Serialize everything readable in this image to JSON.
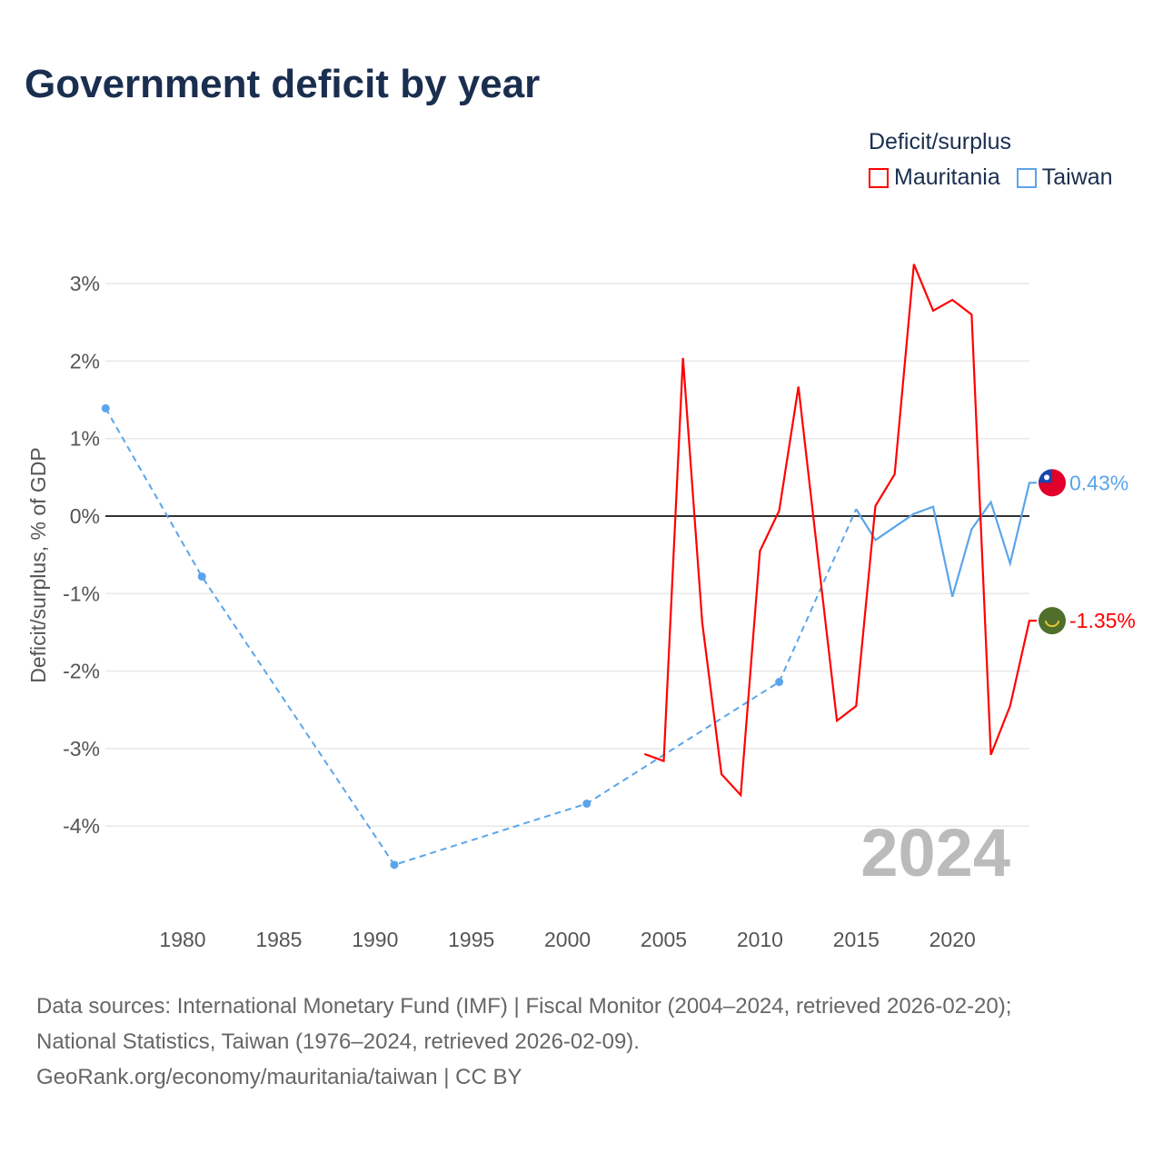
{
  "title": "Government deficit by year",
  "legend": {
    "title": "Deficit/surplus",
    "items": [
      {
        "label": "Mauritania",
        "color": "#ff0000"
      },
      {
        "label": "Taiwan",
        "color": "#5aa5ea"
      }
    ]
  },
  "year_watermark": "2024",
  "sources": [
    "Data sources: International Monetary Fund (IMF) | Fiscal Monitor (2004–2024, retrieved 2026-02-20);",
    "National Statistics, Taiwan (1976–2024, retrieved 2026-02-09).",
    "GeoRank.org/economy/mauritania/taiwan | CC BY"
  ],
  "chart_data": {
    "type": "line",
    "title": "Government deficit by year",
    "xlabel": "",
    "ylabel": "Deficit/surplus, % of GDP",
    "xlim": [
      1976,
      2024
    ],
    "ylim": [
      -5,
      3.3
    ],
    "xticks": [
      "1980",
      "1985",
      "1990",
      "1995",
      "2000",
      "2005",
      "2010",
      "2015",
      "2020"
    ],
    "yticks": [
      "3%",
      "2%",
      "1%",
      "0%",
      "-1%",
      "-2%",
      "-3%",
      "-4%"
    ],
    "ytick_values": [
      3,
      2,
      1,
      0,
      -1,
      -2,
      -3,
      -4
    ],
    "series": [
      {
        "name": "Mauritania",
        "color": "#ff0000",
        "end_label": "-1.35%",
        "x": [
          2004,
          2005,
          2006,
          2007,
          2008,
          2009,
          2010,
          2011,
          2012,
          2013,
          2014,
          2015,
          2016,
          2017,
          2018,
          2019,
          2020,
          2021,
          2022,
          2023,
          2024
        ],
        "y": [
          -3.07,
          -3.16,
          2.04,
          -1.37,
          -3.33,
          -3.6,
          -0.45,
          0.07,
          1.67,
          -0.5,
          -2.64,
          -2.45,
          0.13,
          0.54,
          3.25,
          2.65,
          2.79,
          2.6,
          -3.08,
          -2.45,
          -1.35
        ]
      },
      {
        "name": "Taiwan",
        "color": "#5aa5ea",
        "end_label": "0.43%",
        "sparse_x": [
          1976,
          1981,
          1991,
          2001,
          2011,
          2015
        ],
        "sparse_y": [
          1.39,
          -0.78,
          -4.5,
          -3.71,
          -2.14,
          0.09
        ],
        "x": [
          2015,
          2016,
          2017,
          2018,
          2019,
          2020,
          2021,
          2022,
          2023,
          2024
        ],
        "y": [
          0.09,
          -0.31,
          -0.14,
          0.03,
          0.12,
          -1.04,
          -0.17,
          0.18,
          -0.61,
          0.43
        ]
      }
    ]
  }
}
